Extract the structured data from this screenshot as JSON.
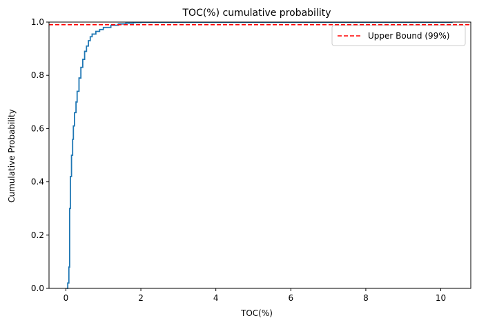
{
  "chart_data": {
    "type": "line",
    "title": "TOC(%) cumulative probability",
    "xlabel": "TOC(%)",
    "ylabel": "Cumulative Probability",
    "xlim": [
      -0.45,
      10.8
    ],
    "ylim": [
      0,
      1
    ],
    "x_ticks": [
      0,
      2,
      4,
      6,
      8,
      10
    ],
    "y_ticks": [
      0.0,
      0.2,
      0.4,
      0.6,
      0.8,
      1.0
    ],
    "grid": false,
    "legend_position": "top-right",
    "series": [
      {
        "color": "#1f77b4",
        "drawstyle": "steps-post",
        "x": [
          0.02,
          0.05,
          0.08,
          0.1,
          0.12,
          0.15,
          0.18,
          0.2,
          0.23,
          0.27,
          0.3,
          0.35,
          0.4,
          0.45,
          0.5,
          0.55,
          0.6,
          0.65,
          0.7,
          0.8,
          0.9,
          1.0,
          1.2,
          1.4,
          1.6,
          1.8,
          2.0,
          10.3
        ],
        "y": [
          0.0,
          0.02,
          0.08,
          0.3,
          0.42,
          0.5,
          0.56,
          0.61,
          0.66,
          0.7,
          0.74,
          0.79,
          0.83,
          0.86,
          0.89,
          0.91,
          0.93,
          0.945,
          0.955,
          0.965,
          0.972,
          0.98,
          0.988,
          0.993,
          0.996,
          0.998,
          0.999,
          1.0
        ]
      },
      {
        "name": "Upper Bound (99%)",
        "color": "#ff0000",
        "linestyle": "dashed",
        "hline": 0.99
      }
    ]
  }
}
